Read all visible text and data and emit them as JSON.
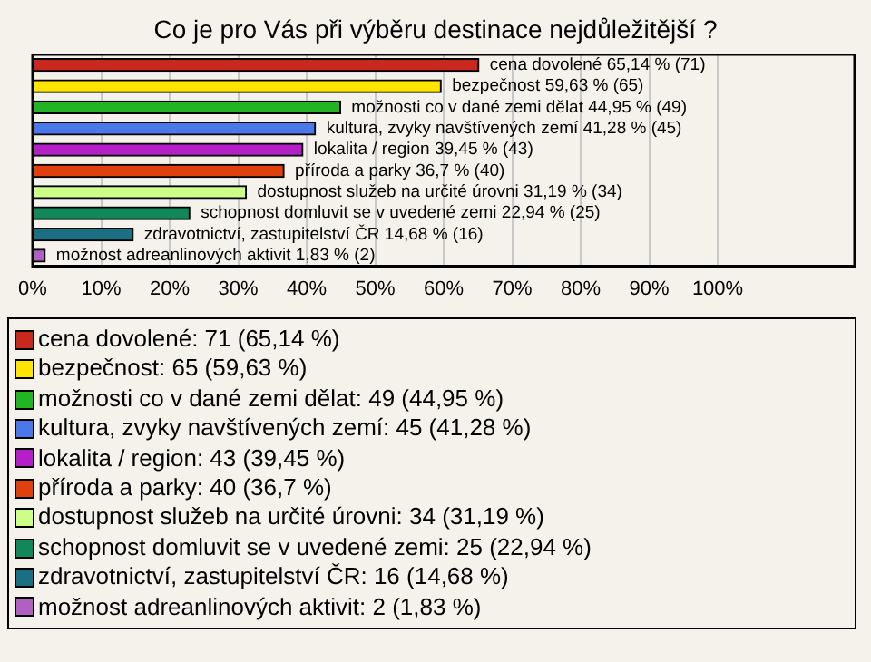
{
  "chart_data": {
    "type": "bar",
    "orientation": "horizontal",
    "title": "Co je pro Vás při výběru destinace nejdůležitější ?",
    "categories": [
      null,
      null,
      null,
      null,
      null,
      null,
      null,
      null,
      null,
      null
    ],
    "series": [
      {
        "name": "cena dovolené: 71 (65,14 %)",
        "color": "#c8281e",
        "values": [
          65.14,
          null,
          null,
          null,
          null,
          null,
          null,
          null,
          null,
          null
        ],
        "value_labels": [
          "cena dovolené 65,14 % (71)",
          null,
          null,
          null,
          null,
          null,
          null,
          null,
          null,
          null
        ]
      },
      {
        "name": "bezpečnost: 65 (59,63 %)",
        "color": "#ffe400",
        "values": [
          null,
          59.63,
          null,
          null,
          null,
          null,
          null,
          null,
          null,
          null
        ],
        "value_labels": [
          null,
          "bezpečnost 59,63 % (65)",
          null,
          null,
          null,
          null,
          null,
          null,
          null,
          null
        ]
      },
      {
        "name": "možnosti co v dané zemi dělat: 49 (44,95 %)",
        "color": "#22b422",
        "values": [
          null,
          null,
          44.95,
          null,
          null,
          null,
          null,
          null,
          null,
          null
        ],
        "value_labels": [
          null,
          null,
          "možnosti co v dané zemi dělat 44,95 % (49)",
          null,
          null,
          null,
          null,
          null,
          null,
          null
        ]
      },
      {
        "name": "kultura, zvyky navštívených zemí: 45 (41,28 %)",
        "color": "#4a78e8",
        "values": [
          null,
          null,
          null,
          41.28,
          null,
          null,
          null,
          null,
          null,
          null
        ],
        "value_labels": [
          null,
          null,
          null,
          "kultura, zvyky navštívených zemí 41,28 % (45)",
          null,
          null,
          null,
          null,
          null,
          null
        ]
      },
      {
        "name": "lokalita / region: 43 (39,45 %)",
        "color": "#b420c8",
        "values": [
          null,
          null,
          null,
          null,
          39.45,
          null,
          null,
          null,
          null,
          null
        ],
        "value_labels": [
          null,
          null,
          null,
          null,
          "lokalita / region 39,45 % (43)",
          null,
          null,
          null,
          null,
          null
        ]
      },
      {
        "name": "příroda a parky: 40 (36,7 %)",
        "color": "#e0400e",
        "values": [
          null,
          null,
          null,
          null,
          null,
          36.7,
          null,
          null,
          null,
          null
        ],
        "value_labels": [
          null,
          null,
          null,
          null,
          null,
          "příroda a parky 36,7 % (40)",
          null,
          null,
          null,
          null
        ]
      },
      {
        "name": "dostupnost služeb na určité úrovni: 34 (31,19 %)",
        "color": "#ccff88",
        "values": [
          null,
          null,
          null,
          null,
          null,
          null,
          31.19,
          null,
          null,
          null
        ],
        "value_labels": [
          null,
          null,
          null,
          null,
          null,
          null,
          "dostupnost služeb na určité úrovni 31,19 % (34)",
          null,
          null,
          null
        ]
      },
      {
        "name": "schopnost domluvit se v uvedené zemi: 25 (22,94 %)",
        "color": "#12885a",
        "values": [
          null,
          null,
          null,
          null,
          null,
          null,
          null,
          22.94,
          null,
          null
        ],
        "value_labels": [
          null,
          null,
          null,
          null,
          null,
          null,
          null,
          "schopnost domluvit se v uvedené zemi 22,94 % (25)",
          null,
          null
        ]
      },
      {
        "name": "zdravotnictví, zastupitelství ČR: 16 (14,68 %)",
        "color": "#1a7082",
        "values": [
          null,
          null,
          null,
          null,
          null,
          null,
          null,
          null,
          14.68,
          null
        ],
        "value_labels": [
          null,
          null,
          null,
          null,
          null,
          null,
          null,
          null,
          "zdravotnictví, zastupitelství ČR 14,68 % (16)",
          null
        ]
      },
      {
        "name": "možnost adreanlinových aktivit: 2 (1,83 %)",
        "color": "#b060c0",
        "values": [
          null,
          null,
          null,
          null,
          null,
          null,
          null,
          null,
          null,
          1.83
        ],
        "value_labels": [
          null,
          null,
          null,
          null,
          null,
          null,
          null,
          null,
          null,
          "možnost adreanlinových aktivit 1,83 % (2)"
        ]
      }
    ],
    "xlim": [
      0,
      120
    ],
    "xticks": [
      {
        "value": 0,
        "label": "0%"
      },
      {
        "value": 10,
        "label": "10%"
      },
      {
        "value": 20,
        "label": "20%"
      },
      {
        "value": 30,
        "label": "30%"
      },
      {
        "value": 40,
        "label": "40%"
      },
      {
        "value": 50,
        "label": "50%"
      },
      {
        "value": 60,
        "label": "60%"
      },
      {
        "value": 70,
        "label": "70%"
      },
      {
        "value": 80,
        "label": "80%"
      },
      {
        "value": 90,
        "label": "90%"
      },
      {
        "value": 100,
        "label": "100%"
      }
    ],
    "grid": "x",
    "legend": "bottom"
  }
}
